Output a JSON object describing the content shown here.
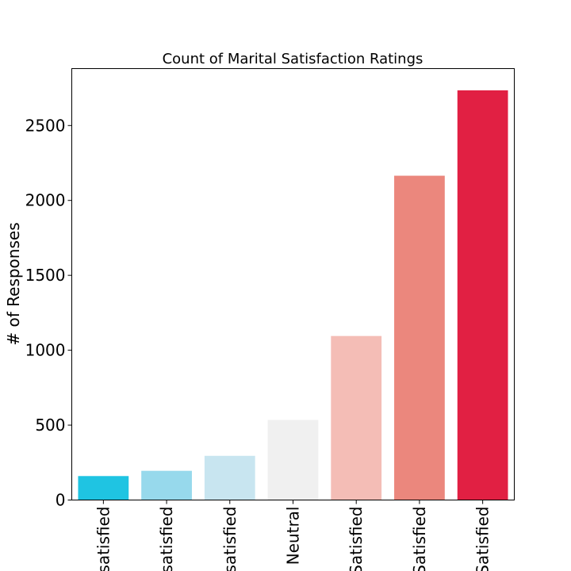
{
  "chart_data": {
    "type": "bar",
    "title": "Count of Marital Satisfaction Ratings",
    "xlabel": "",
    "ylabel": "# of Responses",
    "categories": [
      "Very Dissatisfied",
      "Dissatisfied",
      "Somewhat Dissatisfied",
      "Neutral",
      "Somewhat Satisfied",
      "Satisfied",
      "Very Satisfied"
    ],
    "visible_category_labels": [
      "satisfied",
      "satisfied",
      "satisfied",
      "Neutral",
      "Satisfied",
      "Satisfied",
      "Satisfied"
    ],
    "values": [
      160,
      195,
      295,
      535,
      1095,
      2165,
      2735
    ],
    "colors": [
      "#1fc4e2",
      "#97d9ec",
      "#c8e5f0",
      "#f0f0f0",
      "#f4bdb6",
      "#eb877d",
      "#e12043"
    ],
    "ylim": [
      0,
      2880
    ],
    "yticks": [
      0,
      500,
      1000,
      1500,
      2000,
      2500
    ],
    "grid": false,
    "legend": "none"
  }
}
